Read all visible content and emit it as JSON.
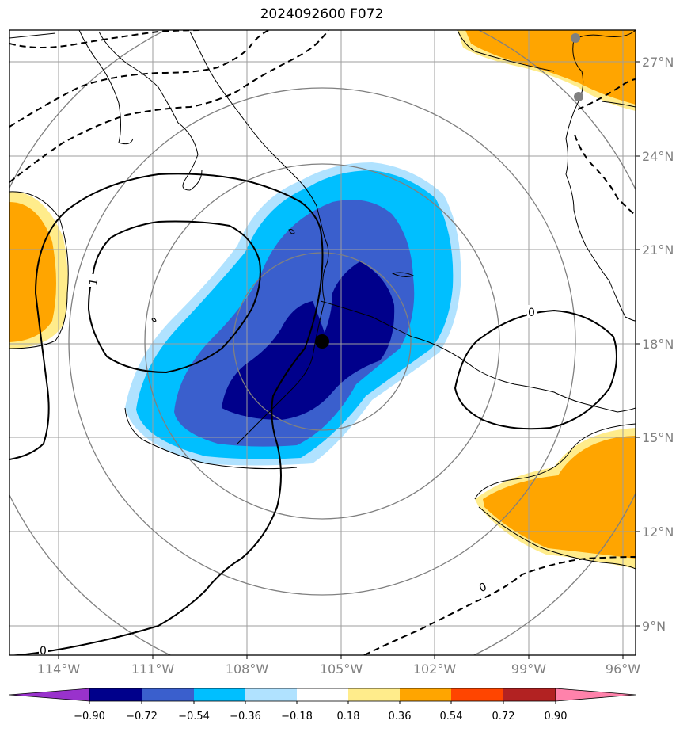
{
  "title": "2024092600 F072",
  "map": {
    "lon_labels": [
      "114°W",
      "111°W",
      "108°W",
      "105°W",
      "102°W",
      "99°W",
      "96°W"
    ],
    "lat_labels": [
      "27°N",
      "24°N",
      "21°N",
      "18°N",
      "15°N",
      "12°N",
      "9°N"
    ],
    "storm_center": {
      "lon": -105.5,
      "lat": 18.0
    },
    "contour_labels": [
      "1",
      "0",
      "0",
      "0"
    ]
  },
  "colorbar": {
    "ticks": [
      "−0.90",
      "−0.72",
      "−0.54",
      "−0.36",
      "−0.18",
      "0.18",
      "0.36",
      "0.54",
      "0.72",
      "0.90"
    ],
    "colors": [
      "#9932cc",
      "#00008b",
      "#3a5fcd",
      "#00bfff",
      "#b0e2ff",
      "#ffffff",
      "#ffec8b",
      "#ffa500",
      "#ff4500",
      "#b22222",
      "#ff82ab"
    ]
  }
}
